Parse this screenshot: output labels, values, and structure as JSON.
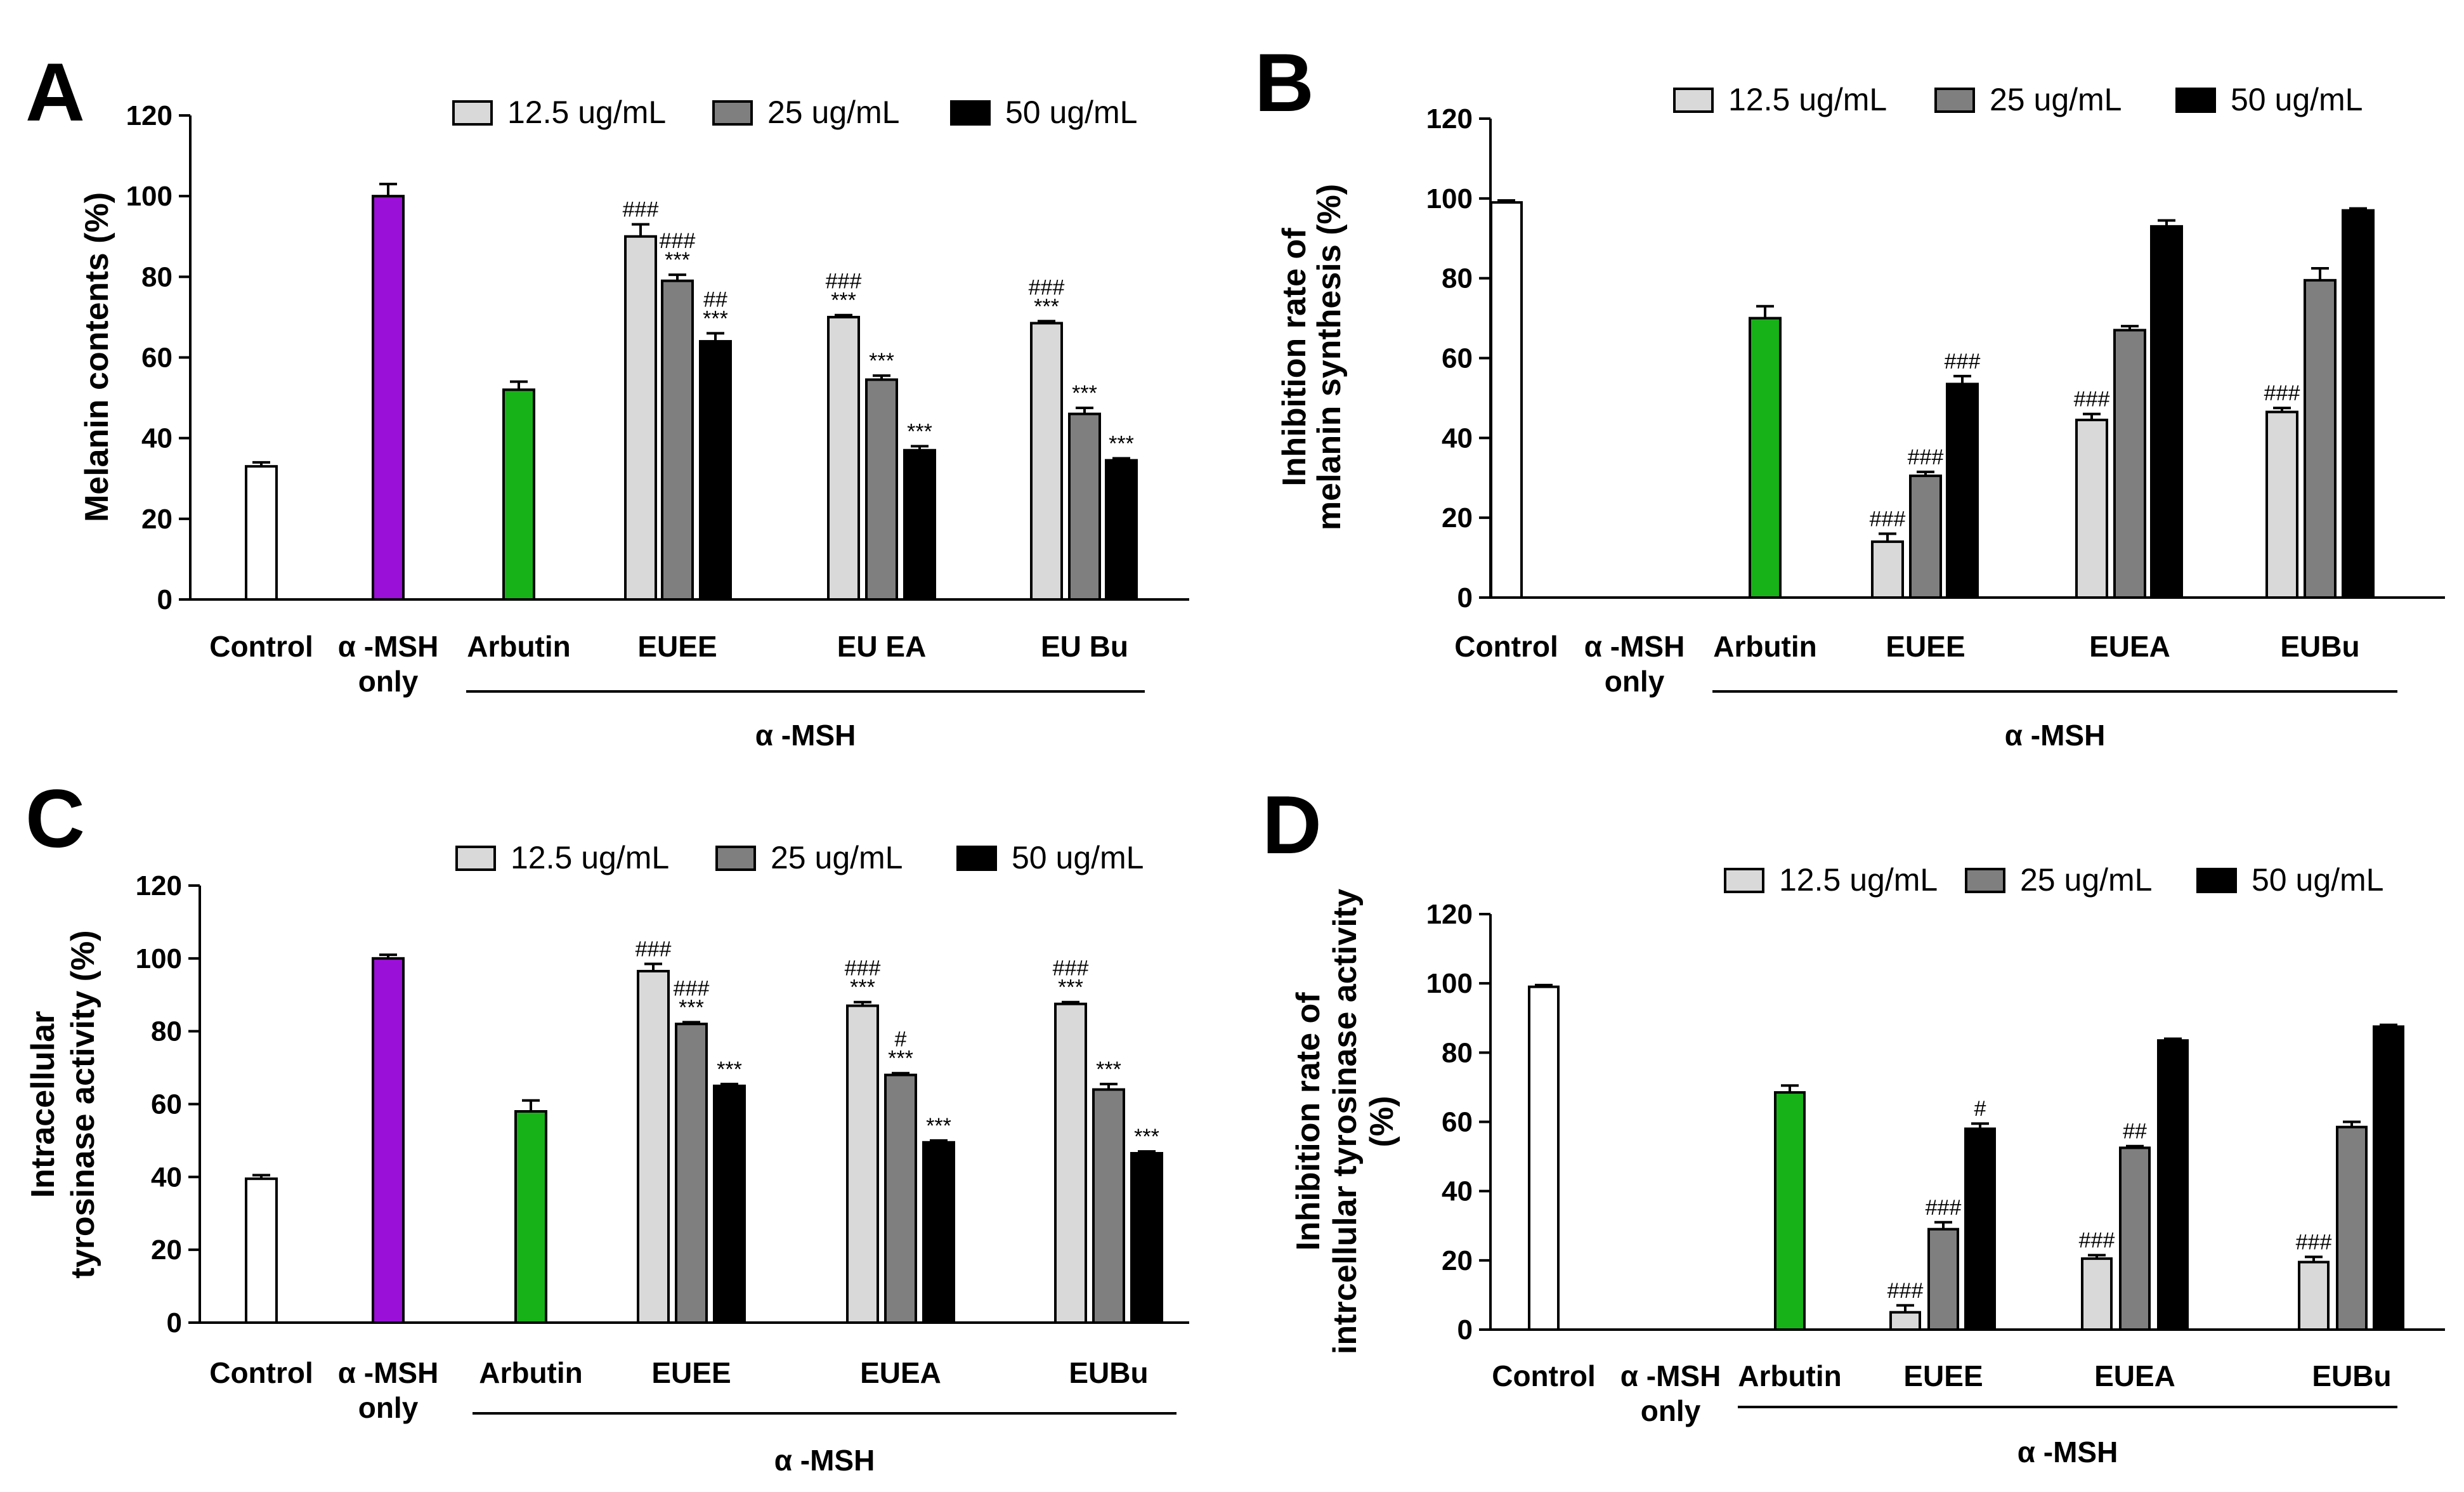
{
  "chart_data": [
    {
      "panel": "A",
      "type": "bar",
      "ylabel_lines": [
        "Melanin contents (%)"
      ],
      "ylim": [
        0,
        120
      ],
      "yticks": [
        "0",
        "20",
        "40",
        "60",
        "80",
        "100",
        "120"
      ],
      "legend": {
        "placement": "top-right",
        "entries": [
          "12.5 ug/mL",
          "25 ug/mL",
          "50 ug/mL"
        ],
        "colors": [
          "#d9d9d9",
          "#7f7f7f",
          "#000000"
        ]
      },
      "group_label": "α -MSH",
      "groups": [
        {
          "label_lines": [
            "Control"
          ],
          "bars": [
            {
              "value": 33,
              "err": 1,
              "color": "#ffffff"
            }
          ]
        },
        {
          "label_lines": [
            "α -MSH",
            "only"
          ],
          "bars": [
            {
              "value": 100,
              "err": 3,
              "color": "#9b10d9"
            }
          ]
        },
        {
          "label_lines": [
            "Arbutin"
          ],
          "bars": [
            {
              "value": 52,
              "err": 2,
              "color": "#17b217"
            }
          ]
        },
        {
          "label_lines": [
            "EUEE"
          ],
          "bars": [
            {
              "value": 90,
              "err": 3,
              "color": "#d9d9d9",
              "ann": [
                "###"
              ]
            },
            {
              "value": 79,
              "err": 1.5,
              "color": "#7f7f7f",
              "ann": [
                "###",
                "***"
              ]
            },
            {
              "value": 64,
              "err": 2,
              "color": "#000000",
              "ann": [
                "##",
                "***"
              ]
            }
          ]
        },
        {
          "label_lines": [
            "EU EA"
          ],
          "bars": [
            {
              "value": 70,
              "err": 0.5,
              "color": "#d9d9d9",
              "ann": [
                "###",
                "***"
              ]
            },
            {
              "value": 54.5,
              "err": 1,
              "color": "#7f7f7f",
              "ann": [
                "***"
              ]
            },
            {
              "value": 37,
              "err": 1,
              "color": "#000000",
              "ann": [
                "***"
              ]
            }
          ]
        },
        {
          "label_lines": [
            "EU Bu"
          ],
          "bars": [
            {
              "value": 68.5,
              "err": 0.5,
              "color": "#d9d9d9",
              "ann": [
                "###",
                "***"
              ]
            },
            {
              "value": 46,
              "err": 1.5,
              "color": "#7f7f7f",
              "ann": [
                "***"
              ]
            },
            {
              "value": 34.5,
              "err": 0.5,
              "color": "#000000",
              "ann": [
                "***"
              ]
            }
          ]
        }
      ]
    },
    {
      "panel": "B",
      "type": "bar",
      "ylabel_lines": [
        "Inhibition rate of",
        "melanin synthesis (%)"
      ],
      "ylim": [
        0,
        120
      ],
      "yticks": [
        "0",
        "20",
        "40",
        "60",
        "80",
        "100",
        "120"
      ],
      "legend": {
        "placement": "top-right",
        "entries": [
          "12.5 ug/mL",
          "25 ug/mL",
          "50 ug/mL"
        ],
        "colors": [
          "#d9d9d9",
          "#7f7f7f",
          "#000000"
        ]
      },
      "group_label": "α -MSH",
      "groups": [
        {
          "label_lines": [
            "Control"
          ],
          "bars": [
            {
              "value": 99,
              "err": 0.5,
              "color": "#ffffff"
            }
          ]
        },
        {
          "label_lines": [
            "α -MSH",
            "only"
          ],
          "bars": []
        },
        {
          "label_lines": [
            "Arbutin"
          ],
          "bars": [
            {
              "value": 70,
              "err": 3,
              "color": "#17b217"
            }
          ]
        },
        {
          "label_lines": [
            "EUEE"
          ],
          "bars": [
            {
              "value": 14,
              "err": 2,
              "color": "#d9d9d9",
              "ann": [
                "###"
              ]
            },
            {
              "value": 30.5,
              "err": 1,
              "color": "#7f7f7f",
              "ann": [
                "###"
              ]
            },
            {
              "value": 53.5,
              "err": 2,
              "color": "#000000",
              "ann": [
                "###"
              ]
            }
          ]
        },
        {
          "label_lines": [
            "EUEA"
          ],
          "bars": [
            {
              "value": 44.5,
              "err": 1.5,
              "color": "#d9d9d9",
              "ann": [
                "###"
              ]
            },
            {
              "value": 67,
              "err": 1,
              "color": "#7f7f7f"
            },
            {
              "value": 93,
              "err": 1.5,
              "color": "#000000"
            }
          ]
        },
        {
          "label_lines": [
            "EUBu"
          ],
          "bars": [
            {
              "value": 46.5,
              "err": 1,
              "color": "#d9d9d9",
              "ann": [
                "###"
              ]
            },
            {
              "value": 79.5,
              "err": 3,
              "color": "#7f7f7f"
            },
            {
              "value": 97,
              "err": 0.5,
              "color": "#000000"
            }
          ]
        }
      ]
    },
    {
      "panel": "C",
      "type": "bar",
      "ylabel_lines": [
        "Intracellular",
        "tyrosinase activity (%)"
      ],
      "ylim": [
        0,
        120
      ],
      "yticks": [
        "0",
        "20",
        "40",
        "60",
        "80",
        "100",
        "120"
      ],
      "legend": {
        "placement": "top-right",
        "entries": [
          "12.5 ug/mL",
          "25 ug/mL",
          "50 ug/mL"
        ],
        "colors": [
          "#d9d9d9",
          "#7f7f7f",
          "#000000"
        ]
      },
      "group_label": "α -MSH",
      "groups": [
        {
          "label_lines": [
            "Control"
          ],
          "bars": [
            {
              "value": 39.5,
              "err": 1,
              "color": "#ffffff"
            }
          ]
        },
        {
          "label_lines": [
            "α -MSH",
            "only"
          ],
          "bars": [
            {
              "value": 100,
              "err": 1,
              "color": "#9b10d9"
            }
          ]
        },
        {
          "label_lines": [
            "Arbutin"
          ],
          "bars": [
            {
              "value": 58,
              "err": 3,
              "color": "#17b217"
            }
          ]
        },
        {
          "label_lines": [
            "EUEE"
          ],
          "bars": [
            {
              "value": 96.5,
              "err": 2,
              "color": "#d9d9d9",
              "ann": [
                "###"
              ]
            },
            {
              "value": 82,
              "err": 0.5,
              "color": "#7f7f7f",
              "ann": [
                "###",
                "***"
              ]
            },
            {
              "value": 65,
              "err": 0.5,
              "color": "#000000",
              "ann": [
                "***"
              ]
            }
          ]
        },
        {
          "label_lines": [
            "EUEA"
          ],
          "bars": [
            {
              "value": 87,
              "err": 1,
              "color": "#d9d9d9",
              "ann": [
                "###",
                "***"
              ]
            },
            {
              "value": 68,
              "err": 0.5,
              "color": "#7f7f7f",
              "ann": [
                "#",
                "***"
              ]
            },
            {
              "value": 49.5,
              "err": 0.5,
              "color": "#000000",
              "ann": [
                "***"
              ]
            }
          ]
        },
        {
          "label_lines": [
            "EUBu"
          ],
          "bars": [
            {
              "value": 87.5,
              "err": 0.5,
              "color": "#d9d9d9",
              "ann": [
                "###",
                "***"
              ]
            },
            {
              "value": 64,
              "err": 1.5,
              "color": "#7f7f7f",
              "ann": [
                "***"
              ]
            },
            {
              "value": 46.5,
              "err": 0.5,
              "color": "#000000",
              "ann": [
                "***"
              ]
            }
          ]
        }
      ]
    },
    {
      "panel": "D",
      "type": "bar",
      "ylabel_lines": [
        "Inhibition rate of",
        "intrcellular tyrosinase activity",
        "(%)"
      ],
      "ylim": [
        0,
        120
      ],
      "yticks": [
        "0",
        "20",
        "40",
        "60",
        "80",
        "100",
        "120"
      ],
      "legend": {
        "placement": "top-right",
        "entries": [
          "12.5 ug/mL",
          "25 ug/mL",
          "50 ug/mL"
        ],
        "colors": [
          "#d9d9d9",
          "#7f7f7f",
          "#000000"
        ]
      },
      "group_label": "α -MSH",
      "groups": [
        {
          "label_lines": [
            "Control"
          ],
          "bars": [
            {
              "value": 99,
              "err": 0.5,
              "color": "#ffffff"
            }
          ]
        },
        {
          "label_lines": [
            "α -MSH",
            "only"
          ],
          "bars": []
        },
        {
          "label_lines": [
            "Arbutin"
          ],
          "bars": [
            {
              "value": 68.5,
              "err": 2,
              "color": "#17b217"
            }
          ]
        },
        {
          "label_lines": [
            "EUEE"
          ],
          "bars": [
            {
              "value": 5,
              "err": 2,
              "color": "#d9d9d9",
              "ann": [
                "###"
              ]
            },
            {
              "value": 29,
              "err": 2,
              "color": "#7f7f7f",
              "ann": [
                "###"
              ]
            },
            {
              "value": 58,
              "err": 1.5,
              "color": "#000000",
              "ann": [
                "#"
              ]
            }
          ]
        },
        {
          "label_lines": [
            "EUEA"
          ],
          "bars": [
            {
              "value": 20.5,
              "err": 1,
              "color": "#d9d9d9",
              "ann": [
                "###"
              ]
            },
            {
              "value": 52.5,
              "err": 0.5,
              "color": "#7f7f7f",
              "ann": [
                "##"
              ]
            },
            {
              "value": 83.5,
              "err": 0.5,
              "color": "#000000"
            }
          ]
        },
        {
          "label_lines": [
            "EUBu"
          ],
          "bars": [
            {
              "value": 19.5,
              "err": 1.5,
              "color": "#d9d9d9",
              "ann": [
                "###"
              ]
            },
            {
              "value": 58.5,
              "err": 1.5,
              "color": "#7f7f7f"
            },
            {
              "value": 87.5,
              "err": 0.5,
              "color": "#000000"
            }
          ]
        }
      ]
    }
  ]
}
